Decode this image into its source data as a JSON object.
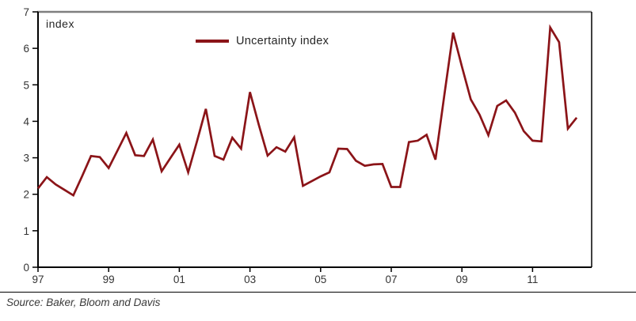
{
  "chart_data": {
    "type": "line",
    "title": "",
    "unit_label": "index",
    "xlabel": "",
    "ylabel": "index",
    "ylim": [
      0,
      7
    ],
    "yticks": [
      0,
      1,
      2,
      3,
      4,
      5,
      6,
      7
    ],
    "xticks": [
      "97",
      "99",
      "01",
      "03",
      "05",
      "07",
      "09",
      "11"
    ],
    "grid": false,
    "legend_position": "top-center",
    "legend": [
      {
        "name": "Uncertainty index",
        "color": "#8B1418"
      }
    ],
    "x": [
      "1997Q1",
      "1997Q2",
      "1997Q3",
      "1997Q4",
      "1998Q1",
      "1998Q2",
      "1998Q3",
      "1998Q4",
      "1999Q1",
      "1999Q2",
      "1999Q3",
      "1999Q4",
      "2000Q1",
      "2000Q2",
      "2000Q3",
      "2000Q4",
      "2001Q1",
      "2001Q2",
      "2001Q3",
      "2001Q4",
      "2002Q1",
      "2002Q2",
      "2002Q3",
      "2002Q4",
      "2003Q1",
      "2003Q2",
      "2003Q3",
      "2003Q4",
      "2004Q1",
      "2004Q2",
      "2004Q3",
      "2004Q4",
      "2005Q1",
      "2005Q2",
      "2005Q3",
      "2005Q4",
      "2006Q1",
      "2006Q2",
      "2006Q3",
      "2006Q4",
      "2007Q1",
      "2007Q2",
      "2007Q3",
      "2007Q4",
      "2008Q1",
      "2008Q2",
      "2008Q3",
      "2008Q4",
      "2009Q1",
      "2009Q2",
      "2009Q3",
      "2009Q4",
      "2010Q1",
      "2010Q2",
      "2010Q3",
      "2010Q4",
      "2011Q1",
      "2011Q2",
      "2011Q3",
      "2011Q4",
      "2012Q1",
      "2012Q2"
    ],
    "series": [
      {
        "name": "Uncertainty index",
        "values": [
          2.16,
          2.47,
          2.27,
          2.12,
          1.97,
          2.5,
          3.05,
          3.02,
          2.72,
          3.2,
          3.68,
          3.07,
          3.05,
          3.5,
          2.63,
          3.0,
          3.36,
          2.6,
          3.45,
          4.34,
          3.05,
          2.95,
          3.55,
          3.25,
          4.8,
          3.9,
          3.06,
          3.29,
          3.17,
          3.56,
          2.23,
          2.36,
          2.49,
          2.6,
          3.25,
          3.24,
          2.92,
          2.78,
          2.82,
          2.83,
          2.2,
          2.2,
          3.43,
          3.47,
          3.63,
          2.95,
          4.7,
          6.43,
          5.5,
          4.6,
          4.18,
          3.62,
          4.42,
          4.57,
          4.24,
          3.73,
          3.47,
          3.45,
          6.57,
          6.17,
          3.8,
          4.1
        ]
      }
    ]
  },
  "colors": {
    "line": "#8B1418",
    "axis": "#000000",
    "top_border": "#7f7f7f",
    "tick_text": "#333333"
  },
  "footer": {
    "source": "Source: Baker, Bloom and Davis"
  }
}
